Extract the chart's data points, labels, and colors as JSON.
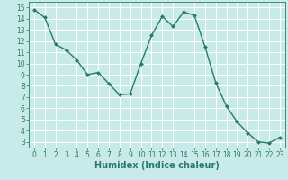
{
  "x": [
    0,
    1,
    2,
    3,
    4,
    5,
    6,
    7,
    8,
    9,
    10,
    11,
    12,
    13,
    14,
    15,
    16,
    17,
    18,
    19,
    20,
    21,
    22,
    23
  ],
  "y": [
    14.8,
    14.1,
    11.7,
    11.2,
    10.3,
    9.0,
    9.2,
    8.2,
    7.2,
    7.3,
    10.0,
    12.5,
    14.2,
    13.3,
    14.6,
    14.3,
    11.5,
    8.3,
    6.2,
    4.8,
    3.8,
    3.0,
    2.9,
    3.4
  ],
  "line_color": "#2a7a6a",
  "marker": "D",
  "markersize": 2.0,
  "linewidth": 1.0,
  "bg_color": "#c8eae8",
  "grid_color": "#ffffff",
  "xlabel": "Humidex (Indice chaleur)",
  "xlabel_fontsize": 7,
  "xlabel_weight": "bold",
  "xticks": [
    0,
    1,
    2,
    3,
    4,
    5,
    6,
    7,
    8,
    9,
    10,
    11,
    12,
    13,
    14,
    15,
    16,
    17,
    18,
    19,
    20,
    21,
    22,
    23
  ],
  "yticks": [
    3,
    4,
    5,
    6,
    7,
    8,
    9,
    10,
    11,
    12,
    13,
    14,
    15
  ],
  "ylim": [
    2.5,
    15.5
  ],
  "xlim": [
    -0.5,
    23.5
  ],
  "tick_labelsize": 5.5,
  "axis_color": "#2a7a6a"
}
